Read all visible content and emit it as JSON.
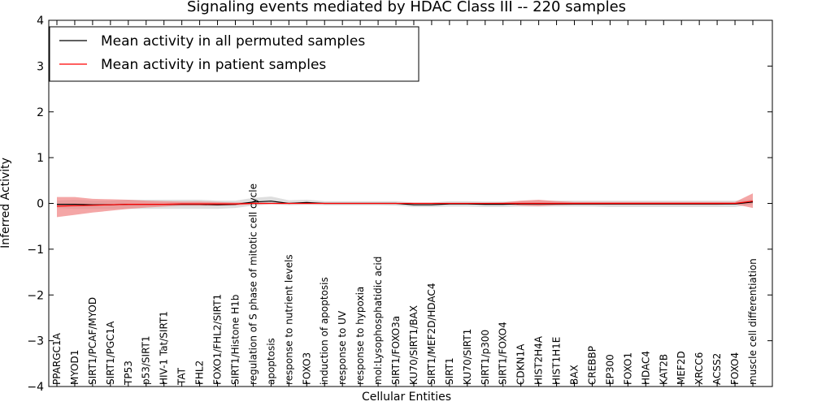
{
  "chart_data": {
    "type": "line",
    "title": "Signaling events mediated by HDAC Class III -- 220 samples",
    "xlabel": "Cellular Entities",
    "ylabel": "Inferred Activity",
    "ylim": [
      -4,
      4
    ],
    "yticks": [
      "−4",
      "−3",
      "−2",
      "−1",
      "0",
      "1",
      "2",
      "3",
      "4"
    ],
    "legend_position": "top-left",
    "colors": {
      "permuted_line": "#000000",
      "permuted_band": "#c8c8c8",
      "patient_line": "#ff0000",
      "patient_band": "#f08080"
    },
    "categories": [
      "PPARGC1A",
      "MYOD1",
      "SIRT1/PCAF/MYOD",
      "SIRT1/PGC1A",
      "TP53",
      "p53/SIRT1",
      "HIV-1 Tat/SIRT1",
      "TAT",
      "FHL2",
      "FOXO1/FHL2/SIRT1",
      "SIRT1/Histone H1b",
      "regulation of S phase of mitotic cell cycle",
      "apoptosis",
      "response to nutrient levels",
      "FOXO3",
      "induction of apoptosis",
      "response to UV",
      "response to hypoxia",
      "mol:Lysophosphatidic acid",
      "SIRT1/FOXO3a",
      "KU70/SIRT1/BAX",
      "SIRT1/MEF2D/HDAC4",
      "SIRT1",
      "KU70/SIRT1",
      "SIRT1/p300",
      "SIRT1/FOXO4",
      "CDKN1A",
      "HIST2H4A",
      "HIST1H1E",
      "BAX",
      "CREBBP",
      "EP300",
      "FOXO1",
      "HDAC4",
      "KAT2B",
      "MEF2D",
      "XRCC6",
      "ACSS2",
      "FOXO4",
      "muscle cell differentiation"
    ],
    "series": [
      {
        "name": "Mean activity in all permuted samples",
        "values": [
          -0.02,
          -0.02,
          -0.03,
          -0.03,
          -0.02,
          -0.02,
          -0.02,
          -0.02,
          -0.02,
          -0.03,
          -0.02,
          0.03,
          0.05,
          0.0,
          0.02,
          0.0,
          0.0,
          0.0,
          0.0,
          0.0,
          -0.03,
          -0.03,
          -0.01,
          -0.01,
          -0.02,
          -0.02,
          -0.01,
          -0.01,
          -0.01,
          -0.01,
          -0.01,
          -0.01,
          -0.01,
          -0.01,
          -0.01,
          -0.01,
          -0.01,
          -0.01,
          -0.01,
          0.03
        ],
        "lower": [
          -0.1,
          -0.12,
          -0.12,
          -0.12,
          -0.12,
          -0.12,
          -0.12,
          -0.12,
          -0.12,
          -0.12,
          -0.1,
          -0.05,
          -0.02,
          -0.04,
          -0.03,
          -0.04,
          -0.04,
          -0.04,
          -0.04,
          -0.05,
          -0.08,
          -0.08,
          -0.07,
          -0.07,
          -0.08,
          -0.08,
          -0.07,
          -0.07,
          -0.07,
          -0.07,
          -0.07,
          -0.08,
          -0.08,
          -0.08,
          -0.08,
          -0.08,
          -0.08,
          -0.08,
          -0.08,
          -0.02
        ],
        "upper": [
          0.06,
          0.08,
          0.06,
          0.06,
          0.08,
          0.08,
          0.08,
          0.08,
          0.08,
          0.06,
          0.06,
          0.12,
          0.15,
          0.07,
          0.08,
          0.05,
          0.05,
          0.05,
          0.05,
          0.05,
          0.02,
          0.02,
          0.05,
          0.05,
          0.04,
          0.04,
          0.05,
          0.06,
          0.06,
          0.06,
          0.06,
          0.06,
          0.06,
          0.06,
          0.06,
          0.06,
          0.06,
          0.06,
          0.06,
          0.09
        ]
      },
      {
        "name": "Mean activity in patient samples",
        "values": [
          -0.06,
          -0.05,
          -0.04,
          -0.03,
          -0.02,
          -0.02,
          -0.02,
          -0.01,
          -0.01,
          -0.01,
          -0.01,
          0.0,
          0.0,
          0.0,
          0.0,
          0.0,
          0.0,
          0.0,
          0.0,
          0.0,
          0.0,
          0.0,
          0.0,
          0.0,
          0.0,
          0.0,
          0.0,
          0.0,
          0.0,
          0.0,
          0.0,
          0.0,
          0.0,
          0.0,
          0.0,
          0.0,
          0.0,
          0.0,
          0.0,
          0.05
        ],
        "lower": [
          -0.3,
          -0.25,
          -0.2,
          -0.16,
          -0.12,
          -0.09,
          -0.07,
          -0.05,
          -0.05,
          -0.05,
          -0.04,
          -0.02,
          -0.01,
          -0.01,
          -0.01,
          -0.01,
          -0.01,
          -0.01,
          -0.01,
          -0.01,
          -0.01,
          -0.01,
          -0.01,
          -0.01,
          -0.01,
          -0.02,
          -0.05,
          -0.06,
          -0.04,
          -0.03,
          -0.03,
          -0.03,
          -0.03,
          -0.03,
          -0.03,
          -0.03,
          -0.03,
          -0.03,
          -0.02,
          -0.1
        ],
        "upper": [
          0.14,
          0.14,
          0.1,
          0.09,
          0.08,
          0.06,
          0.05,
          0.04,
          0.04,
          0.03,
          0.02,
          0.02,
          0.01,
          0.01,
          0.01,
          0.01,
          0.01,
          0.01,
          0.01,
          0.01,
          0.01,
          0.01,
          0.01,
          0.01,
          0.01,
          0.02,
          0.06,
          0.08,
          0.05,
          0.03,
          0.03,
          0.03,
          0.03,
          0.03,
          0.03,
          0.03,
          0.03,
          0.03,
          0.03,
          0.22
        ]
      }
    ]
  }
}
